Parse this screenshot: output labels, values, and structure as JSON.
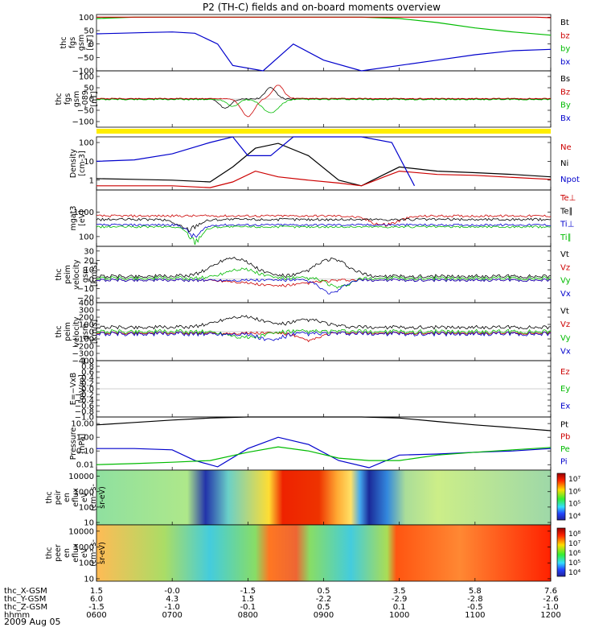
{
  "title": "P2 (TH-C) fields and on-board moments overview",
  "date": "2009 Aug 05",
  "ephemeris": {
    "row_labels": [
      "thc_X-GSM",
      "thc_Y-GSM",
      "thc_Z-GSM",
      "hhmm"
    ],
    "columns": [
      [
        "1.5",
        "6.0",
        "-1.5",
        "0600"
      ],
      [
        "-0.0",
        "4.3",
        "-1.0",
        "0700"
      ],
      [
        "-1.5",
        "1.5",
        "-0.1",
        "0800"
      ],
      [
        "0.5",
        "-2.2",
        "0.5",
        "0900"
      ],
      [
        "3.5",
        "-2.9",
        "0.1",
        "1000"
      ],
      [
        "5.8",
        "-2.8",
        "-0.5",
        "1100"
      ],
      [
        "7.6",
        "-2.6",
        "-1.0",
        "1200"
      ]
    ]
  },
  "panels": [
    {
      "id": "fgs",
      "ylabel": [
        "thc",
        "fgs",
        "gsm",
        "[nT]"
      ],
      "ticks": [
        "100",
        "50",
        "0",
        "−50",
        "−100"
      ],
      "tick_vals": [
        100,
        50,
        0,
        -50,
        -100
      ],
      "ylim": [
        -100,
        110
      ],
      "legend": [
        {
          "text": "Bt",
          "color": "#000000"
        },
        {
          "text": "bz",
          "color": "#cc0000"
        },
        {
          "text": "by",
          "color": "#00bb00"
        },
        {
          "text": "bx",
          "color": "#0000cc"
        }
      ]
    },
    {
      "id": "fgl",
      "ylabel": [
        "thc",
        "fgs",
        "gsm",
        "-089",
        "[nT]"
      ],
      "ticks": [
        "100",
        "50",
        "0",
        "−50",
        "−100"
      ],
      "tick_vals": [
        100,
        50,
        0,
        -50,
        -100
      ],
      "ylim": [
        -125,
        125
      ],
      "legend": [
        {
          "text": "Bs",
          "color": "#000000"
        },
        {
          "text": "Bz",
          "color": "#cc0000"
        },
        {
          "text": "By",
          "color": "#00bb00"
        },
        {
          "text": "Bx",
          "color": "#0000cc"
        }
      ]
    },
    {
      "id": "density",
      "ylabel": [
        "Density",
        "[cm-3]"
      ],
      "ticks": [
        "100",
        "10",
        "1"
      ],
      "tick_vals": [
        100,
        10,
        1
      ],
      "log": true,
      "ylim": [
        0.3,
        200
      ],
      "legend": [
        {
          "text": "Ne",
          "color": "#cc0000"
        },
        {
          "text": "Ni",
          "color": "#000000"
        },
        {
          "text": "Npot",
          "color": "#0000cc"
        }
      ]
    },
    {
      "id": "temp",
      "ylabel": [
        "mgat3",
        "[eV]"
      ],
      "ticks": [
        "1000",
        "100"
      ],
      "tick_vals": [
        1000,
        100
      ],
      "log": true,
      "ylim": [
        40,
        8000
      ],
      "legend": [
        {
          "text": "Te⊥",
          "color": "#cc0000"
        },
        {
          "text": "Te∥",
          "color": "#000000"
        },
        {
          "text": "Ti⊥",
          "color": "#0000cc"
        },
        {
          "text": "Ti∥",
          "color": "#00bb00"
        }
      ]
    },
    {
      "id": "vel1",
      "ylabel": [
        "thc",
        "peim",
        "velocity",
        "gsm",
        "[km/s]"
      ],
      "ticks": [
        "30",
        "20",
        "10",
        "0",
        "−10",
        "−20"
      ],
      "tick_vals": [
        30,
        20,
        10,
        0,
        -10,
        -20
      ],
      "ylim": [
        -25,
        35
      ],
      "legend": [
        {
          "text": "Vt",
          "color": "#000000"
        },
        {
          "text": "Vz",
          "color": "#cc0000"
        },
        {
          "text": "Vy",
          "color": "#00bb00"
        },
        {
          "text": "Vx",
          "color": "#0000cc"
        }
      ]
    },
    {
      "id": "vel2",
      "ylabel": [
        "thc",
        "peim",
        "velocity",
        "gsm",
        "[km/s]"
      ],
      "ticks": [
        "400",
        "300",
        "200",
        "100",
        "0",
        "−100",
        "−200",
        "−300",
        "−400"
      ],
      "tick_vals": [
        400,
        300,
        200,
        100,
        0,
        -100,
        -200,
        -300,
        -400
      ],
      "ylim": [
        -400,
        400
      ],
      "legend": [
        {
          "text": "Vt",
          "color": "#000000"
        },
        {
          "text": "Vz",
          "color": "#cc0000"
        },
        {
          "text": "Vy",
          "color": "#00bb00"
        },
        {
          "text": "Vx",
          "color": "#0000cc"
        }
      ]
    },
    {
      "id": "efield",
      "ylabel": [
        "E=−VxB",
        "[mV/m]"
      ],
      "ticks": [
        "1.0",
        "0.8",
        "0.6",
        "0.4",
        "0.2",
        "0.0",
        "−0.2",
        "−0.4",
        "−0.6",
        "−0.8",
        "−1.0"
      ],
      "tick_vals": [
        1,
        0.8,
        0.6,
        0.4,
        0.2,
        0,
        -0.2,
        -0.4,
        -0.6,
        -0.8,
        -1
      ],
      "ylim": [
        -1,
        1
      ],
      "legend": [
        {
          "text": "Ez",
          "color": "#cc0000"
        },
        {
          "text": "Ey",
          "color": "#00bb00"
        },
        {
          "text": "Ex",
          "color": "#0000cc"
        }
      ]
    },
    {
      "id": "pressure",
      "ylabel": [
        "Pressure",
        "[nPa]"
      ],
      "ticks": [
        "10.00",
        "1.00",
        "0.10",
        "0.01"
      ],
      "tick_vals": [
        10,
        1,
        0.1,
        0.01
      ],
      "log": true,
      "ylim": [
        0.004,
        30
      ],
      "legend": [
        {
          "text": "Pt",
          "color": "#000000"
        },
        {
          "text": "Pb",
          "color": "#cc0000"
        },
        {
          "text": "Pe",
          "color": "#00bb00"
        },
        {
          "text": "Pi",
          "color": "#0000cc"
        }
      ]
    },
    {
      "id": "peir",
      "ylabel": [
        "thc",
        "peir",
        "en",
        "eflux",
        "eV",
        "(cm²-s-",
        "sr-eV)"
      ],
      "ticks": [
        "10000",
        "1000",
        "100",
        "10"
      ],
      "tick_vals": [
        10000,
        1000,
        100,
        10
      ],
      "log": true,
      "ylim": [
        7,
        25000
      ],
      "colorbar": [
        "10⁷",
        "10⁶",
        "10⁵",
        "10⁴"
      ]
    },
    {
      "id": "peer",
      "ylabel": [
        "thc",
        "peer",
        "en",
        "eflux",
        "eV",
        "(cm²-s-",
        "sr-eV)"
      ],
      "ticks": [
        "10000",
        "1000",
        "100",
        "10"
      ],
      "tick_vals": [
        10000,
        1000,
        100,
        10
      ],
      "log": true,
      "ylim": [
        7,
        25000
      ],
      "colorbar": [
        "10⁸",
        "10⁷",
        "10⁶",
        "10⁵",
        "10⁴"
      ]
    }
  ],
  "chart_data": {
    "type": "line",
    "title": "P2 (TH-C) fields and on-board moments overview",
    "x_unit": "hhmm",
    "xlim": [
      "0600",
      "1200"
    ],
    "x_ticks": [
      "0600",
      "0700",
      "0800",
      "0900",
      "1000",
      "1100",
      "1200"
    ],
    "series": [
      {
        "name": "bx",
        "panel": "fgs",
        "color": "#0000cc",
        "x": [
          6.0,
          6.3,
          6.7,
          7.0,
          7.3,
          7.6,
          7.8,
          8.2,
          8.6,
          9.0,
          9.5,
          10.0,
          10.5,
          11.0,
          11.5,
          12.0
        ],
        "y": [
          38,
          40,
          43,
          45,
          40,
          0,
          -80,
          -100,
          0,
          -60,
          -100,
          -80,
          -60,
          -40,
          -25,
          -20
        ]
      },
      {
        "name": "by",
        "panel": "fgs",
        "color": "#00bb00",
        "x": [
          6.0,
          6.5,
          7.0,
          7.5,
          8.0,
          8.5,
          9.0,
          9.5,
          10.0,
          10.5,
          11.0,
          11.5,
          12.0
        ],
        "y": [
          95,
          100,
          100,
          100,
          100,
          100,
          100,
          100,
          95,
          80,
          60,
          45,
          33
        ]
      },
      {
        "name": "bz",
        "panel": "fgs",
        "color": "#cc0000",
        "x": [
          6.0,
          11.8,
          12.0
        ],
        "y": [
          100,
          100,
          98
        ]
      },
      {
        "name": "Ni",
        "panel": "density",
        "color": "#000000",
        "x": [
          6.0,
          6.5,
          7.0,
          7.5,
          7.8,
          8.1,
          8.4,
          8.8,
          9.2,
          9.5,
          9.8,
          10.0,
          10.5,
          11.0,
          11.5,
          12.0
        ],
        "y": [
          1.2,
          1.1,
          1.0,
          0.8,
          5,
          50,
          90,
          20,
          1.0,
          0.5,
          2,
          5,
          3,
          2.5,
          2,
          1.5
        ]
      },
      {
        "name": "Ne",
        "panel": "density",
        "color": "#cc0000",
        "x": [
          6.0,
          6.5,
          7.0,
          7.5,
          7.8,
          8.1,
          8.4,
          8.8,
          9.2,
          9.5,
          9.8,
          10.0,
          10.5,
          11.0,
          11.5,
          12.0
        ],
        "y": [
          0.5,
          0.5,
          0.5,
          0.4,
          0.8,
          3,
          1.5,
          1.0,
          0.7,
          0.5,
          1.5,
          3,
          2,
          1.8,
          1.4,
          1.1
        ]
      },
      {
        "name": "Npot",
        "panel": "density",
        "color": "#0000cc",
        "x": [
          6.0,
          6.5,
          7.0,
          7.5,
          7.8,
          8.0,
          8.3,
          8.6,
          9.0,
          9.5,
          9.9,
          10.2
        ],
        "y": [
          10,
          12,
          25,
          100,
          200,
          20,
          20,
          200,
          200,
          200,
          100,
          0.5
        ]
      },
      {
        "name": "Pt",
        "panel": "pressure",
        "color": "#000000",
        "x": [
          6.0,
          6.5,
          7.0,
          7.5,
          8.0,
          8.5,
          9.0,
          9.5,
          10.0,
          10.5,
          11.0,
          11.5,
          12.0
        ],
        "y": [
          8,
          12,
          18,
          25,
          30,
          30,
          30,
          30,
          25,
          14,
          8,
          5,
          3
        ]
      },
      {
        "name": "Pi",
        "panel": "pressure",
        "color": "#0000cc",
        "x": [
          6.0,
          6.5,
          7.0,
          7.3,
          7.6,
          8.0,
          8.4,
          8.8,
          9.2,
          9.6,
          10.0,
          10.5,
          11.0,
          11.5,
          12.0
        ],
        "y": [
          0.15,
          0.15,
          0.12,
          0.02,
          0.007,
          0.15,
          1.0,
          0.3,
          0.02,
          0.006,
          0.05,
          0.06,
          0.08,
          0.1,
          0.15
        ]
      },
      {
        "name": "Pe",
        "panel": "pressure",
        "color": "#00bb00",
        "x": [
          6.0,
          6.5,
          7.0,
          7.5,
          8.0,
          8.4,
          8.8,
          9.2,
          9.6,
          10.0,
          10.5,
          11.0,
          11.5,
          12.0
        ],
        "y": [
          0.01,
          0.012,
          0.015,
          0.02,
          0.08,
          0.2,
          0.1,
          0.03,
          0.02,
          0.02,
          0.05,
          0.08,
          0.12,
          0.18
        ]
      }
    ]
  }
}
